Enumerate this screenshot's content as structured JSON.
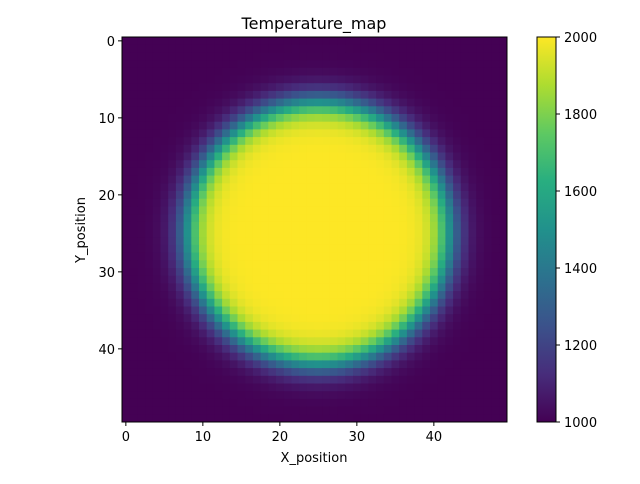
{
  "chart_data": {
    "type": "heatmap",
    "title": "Temperature_map",
    "xlabel": "X_position",
    "ylabel": "Y_position",
    "grid_size": [
      50,
      50
    ],
    "xlim": [
      -0.5,
      49.5
    ],
    "ylim": [
      49.5,
      -0.5
    ],
    "x_ticks": [
      0,
      10,
      20,
      30,
      40
    ],
    "y_ticks": [
      0,
      10,
      20,
      30,
      40
    ],
    "center": [
      25,
      25
    ],
    "hot_radius": 17,
    "falloff_width": 4.5,
    "min_value": 1000,
    "max_value": 2000,
    "colormap": "viridis",
    "colorbar": {
      "range": [
        1000,
        2000
      ],
      "ticks": [
        1000,
        1200,
        1400,
        1600,
        1800,
        2000
      ]
    }
  }
}
